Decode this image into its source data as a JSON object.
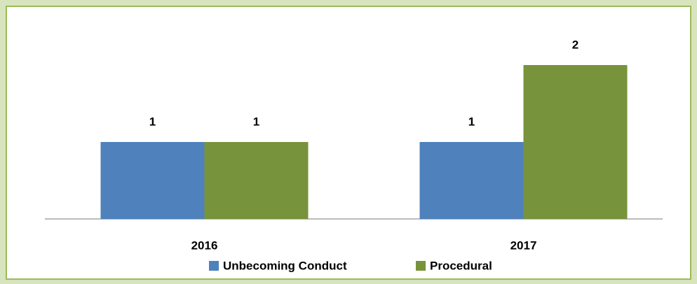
{
  "chart_data": {
    "type": "bar",
    "categories": [
      "2016",
      "2017"
    ],
    "series": [
      {
        "name": "Unbecoming Conduct",
        "color": "#4f81bd",
        "values": [
          1,
          1
        ]
      },
      {
        "name": "Procedural",
        "color": "#77933c",
        "values": [
          1,
          2
        ]
      }
    ],
    "ylim": [
      0,
      2.5
    ],
    "legend": "bottom"
  }
}
